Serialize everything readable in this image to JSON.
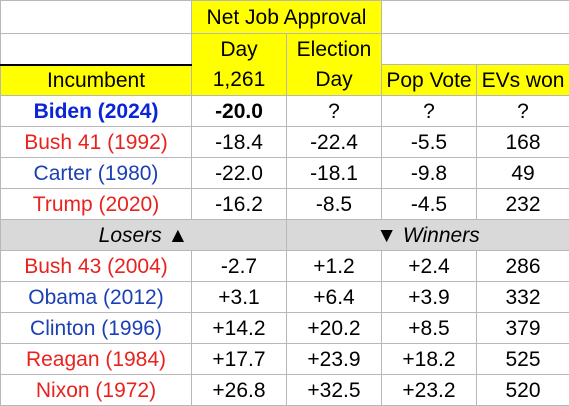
{
  "header": {
    "group_label": "Net Job Approval",
    "col_day_line1": "Day",
    "col_day_line2": "1,261",
    "col_election_line1": "Election",
    "col_election_line2": "Day",
    "col_incumbent": "Incumbent",
    "col_pop_vote": "Pop Vote",
    "col_evs_won": "EVs won"
  },
  "rows_top": [
    {
      "incumbent": "Biden (2024)",
      "party": "dem",
      "day": "-20.0",
      "election": "?",
      "pop": "?",
      "evs": "?"
    },
    {
      "incumbent": "Bush 41 (1992)",
      "party": "rep",
      "day": "-18.4",
      "election": "-22.4",
      "pop": "-5.5",
      "evs": "168"
    },
    {
      "incumbent": "Carter (1980)",
      "party": "dem",
      "day": "-22.0",
      "election": "-18.1",
      "pop": "-9.8",
      "evs": "49"
    },
    {
      "incumbent": "Trump (2020)",
      "party": "rep",
      "day": "-16.2",
      "election": "-8.5",
      "pop": "-4.5",
      "evs": "232"
    }
  ],
  "separator": {
    "losers": "Losers ▲",
    "winners": "▼ Winners"
  },
  "rows_bottom": [
    {
      "incumbent": "Bush 43 (2004)",
      "party": "rep",
      "day": "-2.7",
      "election": "+1.2",
      "pop": "+2.4",
      "evs": "286"
    },
    {
      "incumbent": "Obama (2012)",
      "party": "dem",
      "day": "+3.1",
      "election": "+6.4",
      "pop": "+3.9",
      "evs": "332"
    },
    {
      "incumbent": "Clinton (1996)",
      "party": "dem",
      "day": "+14.2",
      "election": "+20.2",
      "pop": "+8.5",
      "evs": "379"
    },
    {
      "incumbent": "Reagan (1984)",
      "party": "rep",
      "day": "+17.7",
      "election": "+23.9",
      "pop": "+18.2",
      "evs": "525"
    },
    {
      "incumbent": "Nixon (1972)",
      "party": "rep",
      "day": "+26.8",
      "election": "+32.5",
      "pop": "+23.2",
      "evs": "520"
    }
  ],
  "colors": {
    "header_fill": "#ffff00",
    "separator_fill": "#d9d9d9",
    "democrat_text": "#1b3fb4",
    "republican_text": "#e8231f",
    "biden_text": "#0b24d6"
  }
}
